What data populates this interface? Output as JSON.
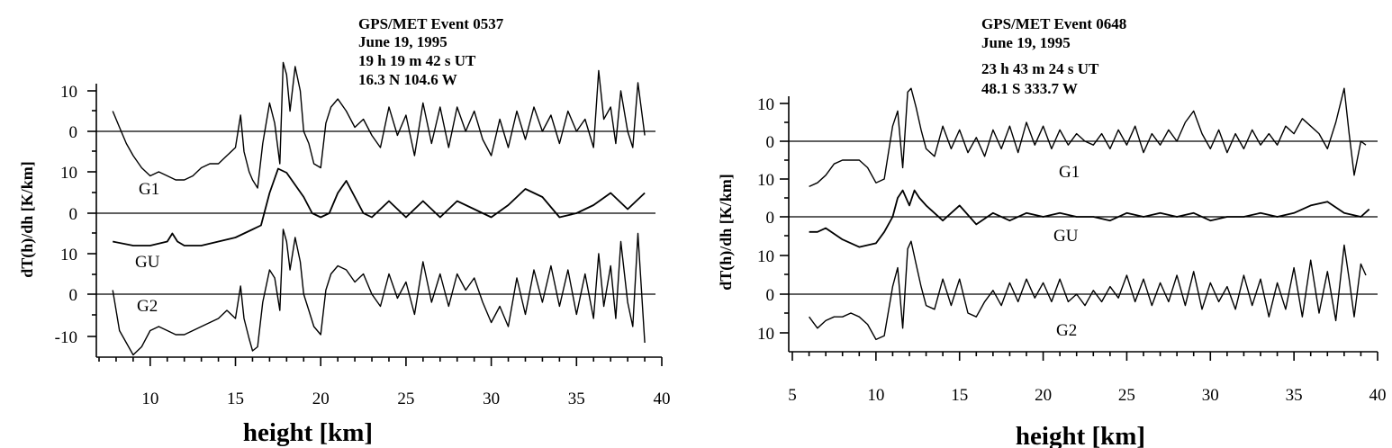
{
  "chart_data": [
    {
      "type": "line",
      "annotation": [
        "GPS/MET Event 0537",
        "June 19, 1995",
        "19 h 19 m 42 s UT",
        "16.3 N 104.6 W"
      ],
      "xlabel": "height [km]",
      "ylabel": "dT(h)/dh [K/km]",
      "xlim": [
        7,
        40
      ],
      "x_ticks": [
        10,
        15,
        20,
        25,
        30,
        35,
        40
      ],
      "y_tick_labels": [
        "10",
        "0",
        "10",
        "0",
        "10",
        "0",
        "-10"
      ],
      "grid": false,
      "series": [
        {
          "name": "G1",
          "offset_key": "top",
          "x": [
            7.8,
            8.2,
            8.6,
            9.0,
            9.5,
            10,
            10.5,
            11,
            11.5,
            12,
            12.5,
            13,
            13.5,
            14,
            14.5,
            15,
            15.3,
            15.5,
            15.8,
            16,
            16.3,
            16.6,
            17,
            17.3,
            17.6,
            17.8,
            18,
            18.2,
            18.5,
            18.8,
            19,
            19.3,
            19.6,
            20,
            20.3,
            20.6,
            21,
            21.5,
            22,
            22.5,
            23,
            23.5,
            24,
            24.5,
            25,
            25.5,
            26,
            26.5,
            27,
            27.5,
            28,
            28.5,
            29,
            29.5,
            30,
            30.5,
            31,
            31.5,
            32,
            32.5,
            33,
            33.5,
            34,
            34.5,
            35,
            35.5,
            36,
            36.3,
            36.6,
            37,
            37.3,
            37.6,
            38,
            38.3,
            38.6,
            39
          ],
          "values": [
            5,
            1,
            -3,
            -6,
            -9,
            -11,
            -10,
            -11,
            -12,
            -12,
            -11,
            -9,
            -8,
            -8,
            -6,
            -4,
            4,
            -5,
            -10,
            -12,
            -14,
            -3,
            7,
            2,
            -8,
            17,
            14,
            5,
            16,
            10,
            0,
            -3,
            -8,
            -9,
            2,
            6,
            8,
            5,
            1,
            3,
            -1,
            -4,
            6,
            -1,
            4,
            -6,
            7,
            -3,
            6,
            -4,
            6,
            0,
            5,
            -2,
            -6,
            3,
            -4,
            5,
            -2,
            6,
            0,
            4,
            -3,
            5,
            0,
            3,
            -4,
            15,
            3,
            6,
            -3,
            10,
            0,
            -4,
            12,
            -1
          ]
        },
        {
          "name": "GU",
          "offset_key": "middle",
          "x": [
            7.8,
            9,
            10,
            11,
            11.3,
            11.6,
            12,
            13,
            14,
            15,
            16,
            16.5,
            17,
            17.5,
            18,
            18.5,
            19,
            19.5,
            20,
            20.5,
            21,
            21.5,
            22,
            22.5,
            23,
            24,
            25,
            26,
            27,
            28,
            29,
            30,
            31,
            32,
            33,
            34,
            35,
            36,
            37,
            38,
            39
          ],
          "values": [
            -7,
            -8,
            -8,
            -7,
            -5,
            -7,
            -8,
            -8,
            -7,
            -6,
            -4,
            -3,
            5,
            11,
            10,
            7,
            4,
            0,
            -1,
            0,
            5,
            8,
            4,
            0,
            -1,
            3,
            -1,
            3,
            -1,
            3,
            1,
            -1,
            2,
            6,
            4,
            -1,
            0,
            2,
            5,
            1,
            5
          ]
        },
        {
          "name": "G2",
          "offset_key": "bottom",
          "x": [
            7.8,
            8.2,
            8.6,
            9.0,
            9.5,
            10,
            10.5,
            11,
            11.5,
            12,
            12.5,
            13,
            13.5,
            14,
            14.5,
            15,
            15.3,
            15.5,
            15.8,
            16,
            16.3,
            16.6,
            17,
            17.3,
            17.6,
            17.8,
            18,
            18.2,
            18.5,
            18.8,
            19,
            19.3,
            19.6,
            20,
            20.3,
            20.6,
            21,
            21.5,
            22,
            22.5,
            23,
            23.5,
            24,
            24.5,
            25,
            25.5,
            26,
            26.5,
            27,
            27.5,
            28,
            28.5,
            29,
            29.5,
            30,
            30.5,
            31,
            31.5,
            32,
            32.5,
            33,
            33.5,
            34,
            34.5,
            35,
            35.5,
            36,
            36.3,
            36.6,
            37,
            37.3,
            37.6,
            38,
            38.3,
            38.6,
            39
          ],
          "values": [
            1,
            -9,
            -12,
            -15,
            -13,
            -9,
            -8,
            -9,
            -10,
            -10,
            -9,
            -8,
            -7,
            -6,
            -4,
            -6,
            2,
            -6,
            -11,
            -14,
            -13,
            -2,
            6,
            4,
            -4,
            16,
            13,
            6,
            14,
            8,
            0,
            -4,
            -8,
            -10,
            1,
            5,
            7,
            6,
            3,
            5,
            0,
            -3,
            5,
            -1,
            3,
            -5,
            8,
            -2,
            5,
            -3,
            5,
            1,
            4,
            -2,
            -7,
            -3,
            -8,
            4,
            -5,
            6,
            -2,
            7,
            -3,
            6,
            -5,
            5,
            -6,
            10,
            -3,
            7,
            -6,
            13,
            -2,
            -8,
            15,
            -12
          ]
        }
      ]
    },
    {
      "type": "line",
      "annotation": [
        "GPS/MET Event 0648",
        "June 19, 1995",
        "23 h 43 m 24 s UT",
        "48.1 S 333.7 W"
      ],
      "xlabel": "height [km]",
      "ylabel": "dT(h)/dh [K/km]",
      "xlim": [
        5,
        40
      ],
      "x_ticks": [
        5,
        10,
        15,
        20,
        25,
        30,
        35,
        40
      ],
      "y_tick_labels": [
        "10",
        "0",
        "10",
        "0",
        "10",
        "0",
        "10"
      ],
      "grid": false,
      "series": [
        {
          "name": "G1",
          "offset_key": "top",
          "x": [
            6,
            6.5,
            7,
            7.5,
            8,
            8.5,
            9,
            9.5,
            10,
            10.5,
            11,
            11.3,
            11.6,
            11.9,
            12.1,
            12.4,
            12.7,
            13,
            13.5,
            14,
            14.5,
            15,
            15.5,
            16,
            16.5,
            17,
            17.5,
            18,
            18.5,
            19,
            19.5,
            20,
            20.5,
            21,
            21.5,
            22,
            22.5,
            23,
            23.5,
            24,
            24.5,
            25,
            25.5,
            26,
            26.5,
            27,
            27.5,
            28,
            28.5,
            29,
            29.5,
            30,
            30.5,
            31,
            31.5,
            32,
            32.5,
            33,
            33.5,
            34,
            34.5,
            35,
            35.5,
            36,
            36.5,
            37,
            37.5,
            38,
            38.3,
            38.6,
            39,
            39.3
          ],
          "values": [
            -12,
            -11,
            -9,
            -6,
            -5,
            -5,
            -5,
            -7,
            -11,
            -10,
            4,
            8,
            -7,
            13,
            14,
            9,
            3,
            -2,
            -4,
            4,
            -2,
            3,
            -3,
            1,
            -4,
            3,
            -2,
            4,
            -3,
            5,
            -1,
            4,
            -2,
            3,
            -1,
            2,
            0,
            -1,
            2,
            -2,
            3,
            -1,
            4,
            -3,
            2,
            -1,
            3,
            0,
            5,
            8,
            2,
            -2,
            3,
            -3,
            2,
            -2,
            3,
            -1,
            2,
            -1,
            4,
            2,
            6,
            4,
            2,
            -2,
            5,
            14,
            2,
            -9,
            0,
            -1
          ]
        },
        {
          "name": "GU",
          "offset_key": "middle",
          "x": [
            6,
            6.5,
            7,
            8,
            9,
            10,
            10.5,
            11,
            11.3,
            11.6,
            12,
            12.3,
            12.6,
            13,
            14,
            15,
            16,
            17,
            18,
            19,
            20,
            21,
            22,
            23,
            24,
            25,
            26,
            27,
            28,
            29,
            30,
            31,
            32,
            33,
            34,
            35,
            36,
            37,
            38,
            39,
            39.5
          ],
          "values": [
            -4,
            -4,
            -3,
            -6,
            -8,
            -7,
            -4,
            0,
            5,
            7,
            3,
            7,
            5,
            3,
            -1,
            3,
            -2,
            1,
            -1,
            1,
            0,
            1,
            0,
            0,
            -1,
            1,
            0,
            1,
            0,
            1,
            -1,
            0,
            0,
            1,
            0,
            1,
            3,
            4,
            1,
            0,
            2
          ]
        },
        {
          "name": "G2",
          "offset_key": "bottom",
          "x": [
            6,
            6.5,
            7,
            7.5,
            8,
            8.5,
            9,
            9.5,
            10,
            10.5,
            11,
            11.3,
            11.6,
            11.9,
            12.1,
            12.4,
            12.7,
            13,
            13.5,
            14,
            14.5,
            15,
            15.5,
            16,
            16.5,
            17,
            17.5,
            18,
            18.5,
            19,
            19.5,
            20,
            20.5,
            21,
            21.5,
            22,
            22.5,
            23,
            23.5,
            24,
            24.5,
            25,
            25.5,
            26,
            26.5,
            27,
            27.5,
            28,
            28.5,
            29,
            29.5,
            30,
            30.5,
            31,
            31.5,
            32,
            32.5,
            33,
            33.5,
            34,
            34.5,
            35,
            35.5,
            36,
            36.5,
            37,
            37.5,
            38,
            38.3,
            38.6,
            39,
            39.3
          ],
          "values": [
            -6,
            -9,
            -7,
            -6,
            -6,
            -5,
            -6,
            -8,
            -12,
            -11,
            2,
            7,
            -9,
            12,
            14,
            8,
            2,
            -3,
            -4,
            4,
            -3,
            4,
            -5,
            -6,
            -2,
            1,
            -3,
            3,
            -2,
            4,
            -1,
            3,
            -2,
            4,
            -2,
            0,
            -3,
            1,
            -2,
            2,
            -1,
            5,
            -2,
            4,
            -3,
            3,
            -2,
            5,
            -3,
            6,
            -4,
            3,
            -2,
            2,
            -4,
            5,
            -3,
            4,
            -6,
            3,
            -4,
            7,
            -6,
            9,
            -5,
            6,
            -7,
            13,
            4,
            -6,
            8,
            5
          ]
        }
      ]
    }
  ]
}
